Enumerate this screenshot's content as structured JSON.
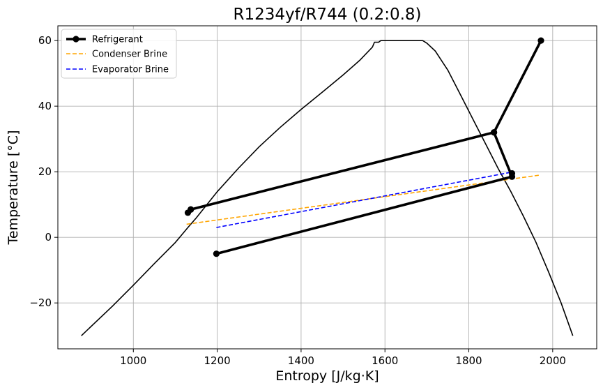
{
  "chart_data": {
    "type": "line",
    "title": "R1234yf/R744 (0.2:0.8)",
    "xlabel": "Entropy [J/kg·K]",
    "ylabel": "Temperature [°C]",
    "xlim": [
      820,
      2105
    ],
    "ylim": [
      -34,
      64.5
    ],
    "grid": true,
    "legend_position": "top-left",
    "x_ticks": [
      1000,
      1200,
      1400,
      1600,
      1800,
      2000
    ],
    "y_ticks": [
      -20,
      0,
      20,
      40,
      60
    ],
    "y_tick_labels": [
      "−20",
      "0",
      "20",
      "40",
      "60"
    ],
    "dome": {
      "color": "#000000",
      "points": [
        [
          876,
          -30
        ],
        [
          950,
          -21
        ],
        [
          1000,
          -14.6
        ],
        [
          1050,
          -8
        ],
        [
          1100,
          -1.6
        ],
        [
          1130,
          3
        ],
        [
          1150,
          5.9
        ],
        [
          1200,
          13.9
        ],
        [
          1250,
          21
        ],
        [
          1300,
          27.6
        ],
        [
          1350,
          33.5
        ],
        [
          1400,
          39
        ],
        [
          1450,
          44.2
        ],
        [
          1500,
          49.5
        ],
        [
          1540,
          54
        ],
        [
          1570,
          58
        ],
        [
          1575,
          59.5
        ],
        [
          1580,
          59.5
        ],
        [
          1585,
          59.5
        ],
        [
          1590,
          60
        ],
        [
          1690,
          60
        ],
        [
          1700,
          59.2
        ],
        [
          1720,
          56.8
        ],
        [
          1750,
          51
        ],
        [
          1780,
          43.5
        ],
        [
          1810,
          36
        ],
        [
          1840,
          28.5
        ],
        [
          1870,
          21
        ],
        [
          1900,
          14
        ],
        [
          1930,
          6.5
        ],
        [
          1960,
          -1.5
        ],
        [
          1990,
          -10.5
        ],
        [
          2020,
          -20
        ],
        [
          2048,
          -30
        ]
      ]
    },
    "series": [
      {
        "name": "Refrigerant",
        "color": "#000000",
        "style": "solid",
        "markers": true,
        "x": [
          1198,
          1903,
          1860,
          1972,
          1860,
          1137,
          1130,
          1137
        ],
        "y": [
          -5,
          18.5,
          32,
          60,
          32,
          8.5,
          7.5,
          8.5
        ]
      },
      {
        "name": "Condenser Brine",
        "color": "#ffa500",
        "style": "dashed",
        "markers": false,
        "x": [
          1127,
          1970
        ],
        "y": [
          4,
          19
        ]
      },
      {
        "name": "Evaporator Brine",
        "color": "#0000ff",
        "style": "dashed",
        "markers": false,
        "x": [
          1198,
          1907
        ],
        "y": [
          3,
          20
        ]
      }
    ],
    "extra_points": [
      [
        1903,
        19.5
      ]
    ]
  }
}
